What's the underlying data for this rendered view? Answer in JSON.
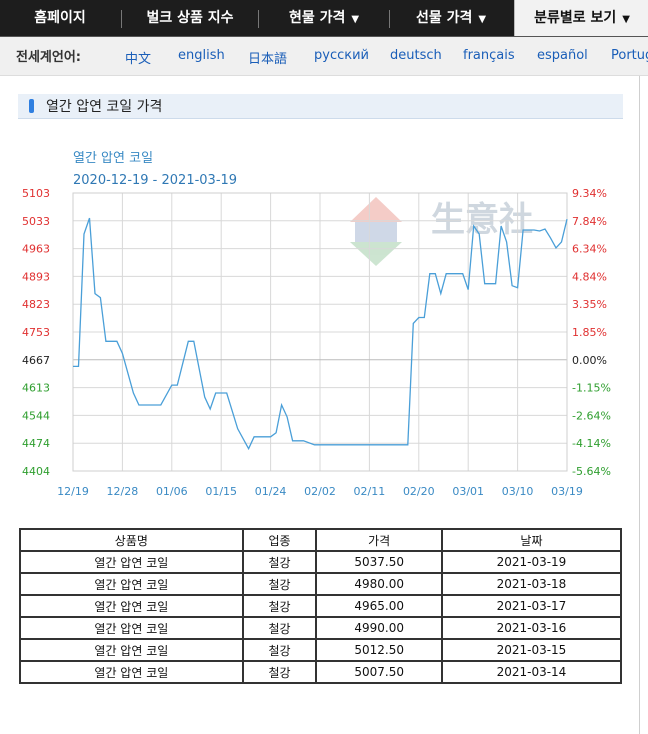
{
  "nav": {
    "items": [
      {
        "label": "홈페이지"
      },
      {
        "label": "벌크 상품 지수"
      },
      {
        "label": "현물 가격",
        "arrow": "▼"
      },
      {
        "label": "선물 가격",
        "arrow": "▼"
      },
      {
        "label": "분류별로 보기",
        "arrow": "▼"
      }
    ]
  },
  "lang_bar": {
    "label": "전세계언어:",
    "languages": [
      "中文",
      "english",
      "日本語",
      "русский",
      "deutsch",
      "français",
      "español",
      "Portug"
    ]
  },
  "section": {
    "title": "열간 압연 코일 가격"
  },
  "chart_data": {
    "type": "line",
    "title": "열간  압연  코일",
    "subtitle": "2020-12-19 - 2021-03-19",
    "watermark": "生意社",
    "left_ticks": [
      "5103",
      "5033",
      "4963",
      "4893",
      "4823",
      "4753",
      "4667",
      "4613",
      "4544",
      "4474",
      "4404"
    ],
    "right_ticks": [
      "9.34%",
      "7.84%",
      "6.34%",
      "4.84%",
      "3.35%",
      "1.85%",
      "0.00%",
      "-1.15%",
      "-2.64%",
      "-4.14%",
      "-5.64%"
    ],
    "x_ticks": [
      "12/19",
      "12/28",
      "01/06",
      "01/15",
      "01/24",
      "02/02",
      "02/11",
      "02/20",
      "03/01",
      "03/10",
      "03/19"
    ],
    "ylim": [
      4404,
      5103
    ],
    "x_range": [
      "2020-12-19",
      "2021-03-19"
    ],
    "colors": {
      "line": "#4a9fd8",
      "up": "#e03030",
      "down": "#2e9e2e",
      "base": "#222222",
      "axis_title": "#3a8ac4",
      "grid": "#d8d8d8"
    },
    "series": [
      {
        "points": [
          {
            "x": "2020-12-19",
            "y": 4667
          },
          {
            "x": "2020-12-20",
            "y": 4667
          },
          {
            "x": "2020-12-21",
            "y": 5000
          },
          {
            "x": "2020-12-22",
            "y": 5040
          },
          {
            "x": "2020-12-23",
            "y": 4850
          },
          {
            "x": "2020-12-24",
            "y": 4840
          },
          {
            "x": "2020-12-25",
            "y": 4730
          },
          {
            "x": "2020-12-27",
            "y": 4730
          },
          {
            "x": "2020-12-28",
            "y": 4700
          },
          {
            "x": "2020-12-30",
            "y": 4600
          },
          {
            "x": "2020-12-31",
            "y": 4570
          },
          {
            "x": "2021-01-04",
            "y": 4570
          },
          {
            "x": "2021-01-06",
            "y": 4620
          },
          {
            "x": "2021-01-07",
            "y": 4620
          },
          {
            "x": "2021-01-09",
            "y": 4730
          },
          {
            "x": "2021-01-10",
            "y": 4730
          },
          {
            "x": "2021-01-12",
            "y": 4590
          },
          {
            "x": "2021-01-13",
            "y": 4560
          },
          {
            "x": "2021-01-14",
            "y": 4600
          },
          {
            "x": "2021-01-16",
            "y": 4600
          },
          {
            "x": "2021-01-18",
            "y": 4510
          },
          {
            "x": "2021-01-20",
            "y": 4460
          },
          {
            "x": "2021-01-21",
            "y": 4490
          },
          {
            "x": "2021-01-24",
            "y": 4490
          },
          {
            "x": "2021-01-25",
            "y": 4500
          },
          {
            "x": "2021-01-26",
            "y": 4570
          },
          {
            "x": "2021-01-27",
            "y": 4540
          },
          {
            "x": "2021-01-28",
            "y": 4480
          },
          {
            "x": "2021-01-30",
            "y": 4480
          },
          {
            "x": "2021-02-01",
            "y": 4470
          },
          {
            "x": "2021-02-18",
            "y": 4470
          },
          {
            "x": "2021-02-19",
            "y": 4775
          },
          {
            "x": "2021-02-20",
            "y": 4790
          },
          {
            "x": "2021-02-21",
            "y": 4790
          },
          {
            "x": "2021-02-22",
            "y": 4900
          },
          {
            "x": "2021-02-23",
            "y": 4900
          },
          {
            "x": "2021-02-24",
            "y": 4850
          },
          {
            "x": "2021-02-25",
            "y": 4900
          },
          {
            "x": "2021-02-28",
            "y": 4900
          },
          {
            "x": "2021-03-01",
            "y": 4860
          },
          {
            "x": "2021-03-02",
            "y": 5020
          },
          {
            "x": "2021-03-03",
            "y": 5000
          },
          {
            "x": "2021-03-04",
            "y": 4875
          },
          {
            "x": "2021-03-06",
            "y": 4875
          },
          {
            "x": "2021-03-07",
            "y": 5020
          },
          {
            "x": "2021-03-08",
            "y": 4980
          },
          {
            "x": "2021-03-09",
            "y": 4870
          },
          {
            "x": "2021-03-10",
            "y": 4865
          },
          {
            "x": "2021-03-11",
            "y": 5010
          },
          {
            "x": "2021-03-13",
            "y": 5010
          },
          {
            "x": "2021-03-14",
            "y": 5007.5
          },
          {
            "x": "2021-03-15",
            "y": 5012.5
          },
          {
            "x": "2021-03-16",
            "y": 4990
          },
          {
            "x": "2021-03-17",
            "y": 4965
          },
          {
            "x": "2021-03-18",
            "y": 4980
          },
          {
            "x": "2021-03-19",
            "y": 5037.5
          }
        ]
      }
    ]
  },
  "table": {
    "headers": [
      "상품명",
      "업종",
      "가격",
      "날짜"
    ],
    "rows": [
      [
        "열간 압연 코일",
        "철강",
        "5037.50",
        "2021-03-19"
      ],
      [
        "열간 압연 코일",
        "철강",
        "4980.00",
        "2021-03-18"
      ],
      [
        "열간 압연 코일",
        "철강",
        "4965.00",
        "2021-03-17"
      ],
      [
        "열간 압연 코일",
        "철강",
        "4990.00",
        "2021-03-16"
      ],
      [
        "열간 압연 코일",
        "철강",
        "5012.50",
        "2021-03-15"
      ],
      [
        "열간 압연 코일",
        "철강",
        "5007.50",
        "2021-03-14"
      ]
    ]
  }
}
